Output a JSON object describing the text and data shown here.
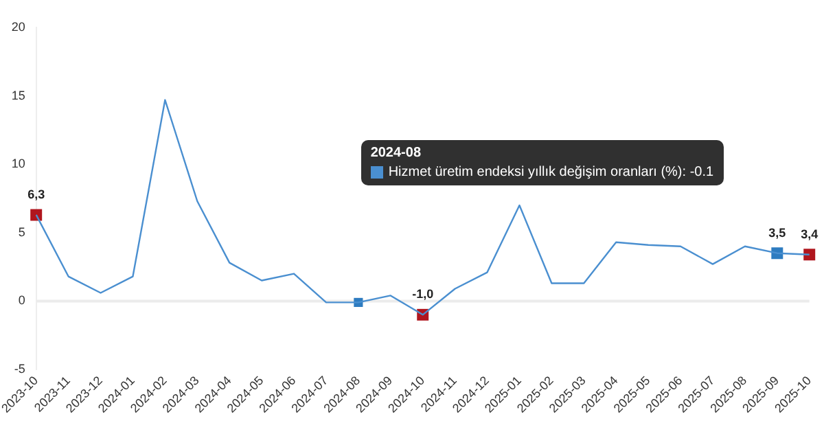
{
  "chart_data": {
    "type": "line",
    "categories": [
      "2023-10",
      "2023-11",
      "2023-12",
      "2024-01",
      "2024-02",
      "2024-03",
      "2024-04",
      "2024-05",
      "2024-06",
      "2024-07",
      "2024-08",
      "2024-09",
      "2024-10",
      "2024-11",
      "2024-12",
      "2025-01",
      "2025-02",
      "2025-03",
      "2025-04",
      "2025-05",
      "2025-06",
      "2025-07",
      "2025-08",
      "2025-09",
      "2025-10"
    ],
    "series": [
      {
        "color": "#4a8fd0",
        "values": [
          6.3,
          1.8,
          0.6,
          1.8,
          14.7,
          7.3,
          2.8,
          1.5,
          2.0,
          -0.1,
          -0.1,
          0.4,
          -1.0,
          0.9,
          2.1,
          7.0,
          1.3,
          1.3,
          4.3,
          4.1,
          4.0,
          2.7,
          4.0,
          3.5,
          3.4
        ]
      },
      {
        "type": "scatter",
        "marker": "square",
        "values": [
          6.3,
          null,
          null,
          null,
          null,
          null,
          null,
          null,
          null,
          null,
          -0.1,
          null,
          -1.0,
          null,
          null,
          null,
          null,
          null,
          null,
          null,
          null,
          null,
          null,
          3.5,
          3.4
        ],
        "colors": [
          "#b0161e",
          null,
          null,
          null,
          null,
          null,
          null,
          null,
          null,
          null,
          "#2e7cc0",
          null,
          "#b0161e",
          null,
          null,
          null,
          null,
          null,
          null,
          null,
          null,
          null,
          null,
          "#2e7cc0",
          "#b0161e"
        ],
        "sizes": [
          1,
          null,
          null,
          null,
          null,
          null,
          null,
          null,
          null,
          null,
          0.6,
          null,
          1,
          null,
          null,
          null,
          null,
          null,
          null,
          null,
          null,
          null,
          null,
          1,
          1
        ],
        "value_labels": [
          "6,3",
          null,
          null,
          null,
          null,
          null,
          null,
          null,
          null,
          null,
          null,
          null,
          "-1,0",
          null,
          null,
          null,
          null,
          null,
          null,
          null,
          null,
          null,
          null,
          "3,5",
          "3,4"
        ]
      }
    ],
    "ylim": [
      -5,
      20
    ],
    "yticks": [
      -5,
      0,
      5,
      10,
      15,
      20
    ],
    "grid": false,
    "legend": false,
    "marker": "none",
    "line_style": "solid",
    "ref_lines": [
      {
        "axis": "y",
        "value": 0,
        "color": "#ececec"
      }
    ],
    "annotations": [
      "2024-08",
      "Hizmet üretim endeksi yıllık değişim oranları (%): -0.1"
    ]
  }
}
